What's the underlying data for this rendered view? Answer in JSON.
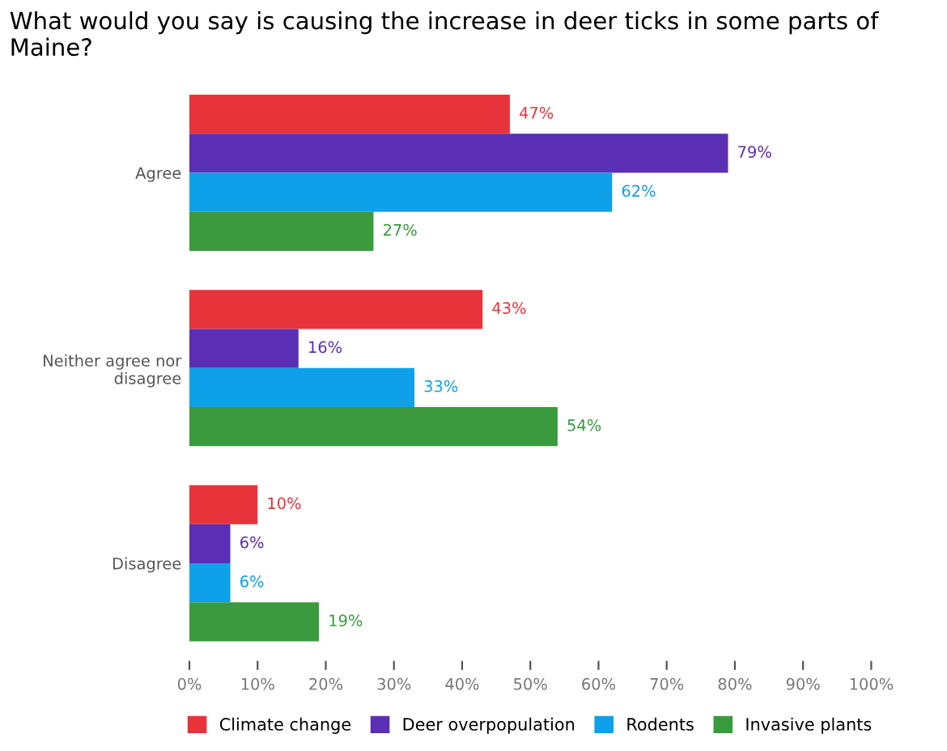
{
  "chart_data": {
    "type": "bar",
    "orientation": "horizontal",
    "title": "What would you say is causing the increase in deer ticks in some parts of Maine?",
    "categories": [
      "Agree",
      "Neither agree nor disagree",
      "Disagree"
    ],
    "series": [
      {
        "name": "Climate change",
        "color": "#e8333a",
        "values": [
          47,
          43,
          10
        ],
        "value_labels": [
          "47%",
          "43%",
          "10%"
        ]
      },
      {
        "name": "Deer overpopulation",
        "color": "#5b2fb5",
        "values": [
          79,
          16,
          6
        ],
        "value_labels": [
          "79%",
          "16%",
          "6%"
        ]
      },
      {
        "name": "Rodents",
        "color": "#0ea0e8",
        "values": [
          62,
          33,
          6
        ],
        "value_labels": [
          "62%",
          "33%",
          "6%"
        ]
      },
      {
        "name": "Invasive plants",
        "color": "#3a9a3e",
        "values": [
          27,
          54,
          19
        ],
        "value_labels": [
          "27%",
          "54%",
          "19%"
        ]
      }
    ],
    "xlim": [
      0,
      100
    ],
    "xticks": [
      {
        "value": 0,
        "label": "0%"
      },
      {
        "value": 10,
        "label": "10%"
      },
      {
        "value": 20,
        "label": "20%"
      },
      {
        "value": 30,
        "label": "30%"
      },
      {
        "value": 40,
        "label": "40%"
      },
      {
        "value": 50,
        "label": "50%"
      },
      {
        "value": 60,
        "label": "60%"
      },
      {
        "value": 70,
        "label": "70%"
      },
      {
        "value": 80,
        "label": "80%"
      },
      {
        "value": 90,
        "label": "90%"
      },
      {
        "value": 100,
        "label": "100%"
      }
    ],
    "grid": false,
    "legend": "bottom"
  }
}
